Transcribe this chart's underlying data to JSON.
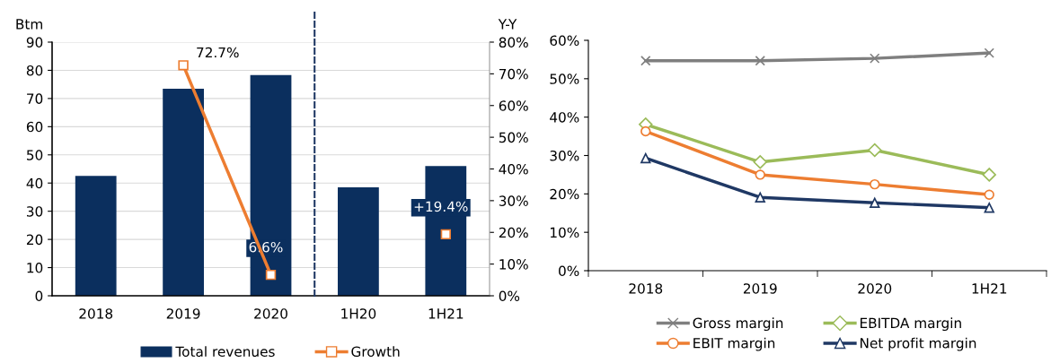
{
  "chart_data": [
    {
      "type": "bar",
      "ylabel": "Btm",
      "y2label": "Y-Y",
      "categories": [
        "2018",
        "2019",
        "2020",
        "1H20",
        "1H21"
      ],
      "series": [
        {
          "name": "Total revenues",
          "type": "bar",
          "color": "#0b2f5e",
          "values": [
            42.5,
            73.5,
            78.3,
            38.5,
            46
          ]
        },
        {
          "name": "Growth",
          "type": "line",
          "axis": "y2",
          "color": "#ed7d31",
          "marker": "square",
          "values": [
            null,
            72.7,
            6.6,
            null,
            19.4
          ],
          "value_labels": [
            null,
            "72.7%",
            "6.6%",
            null,
            "+19.4%"
          ]
        }
      ],
      "ylim": [
        0,
        90
      ],
      "yticks": [
        0,
        10,
        20,
        30,
        40,
        50,
        60,
        70,
        80,
        90
      ],
      "y2lim": [
        0,
        80
      ],
      "y2ticks": [
        {
          "value": 0,
          "label": "0%"
        },
        {
          "value": 10,
          "label": "10%"
        },
        {
          "value": 20,
          "label": "20%"
        },
        {
          "value": 30,
          "label": "30%"
        },
        {
          "value": 40,
          "label": "40%"
        },
        {
          "value": 50,
          "label": "50%"
        },
        {
          "value": 60,
          "label": "60%"
        },
        {
          "value": 70,
          "label": "70%"
        },
        {
          "value": 80,
          "label": "80%"
        }
      ],
      "grid": "y",
      "legend": "bottom"
    },
    {
      "type": "line",
      "categories": [
        "2018",
        "2019",
        "2020",
        "1H21"
      ],
      "series": [
        {
          "name": "Gross margin",
          "color": "#7f7f7f",
          "marker": "cross",
          "values": [
            54.7,
            54.7,
            55.3,
            56.7
          ]
        },
        {
          "name": "EBIT margin",
          "color": "#ed7d31",
          "marker": "circle",
          "values": [
            36.3,
            25.0,
            22.5,
            19.8
          ]
        },
        {
          "name": "EBITDA margin",
          "color": "#9bbb59",
          "marker": "diamond",
          "values": [
            38.1,
            28.3,
            31.4,
            25.0
          ]
        },
        {
          "name": "Net profit margin",
          "color": "#1f3864",
          "marker": "triangle",
          "values": [
            29.3,
            19.1,
            17.7,
            16.4
          ]
        }
      ],
      "ylim": [
        0,
        60
      ],
      "yticks": [
        {
          "value": 0,
          "label": "0%"
        },
        {
          "value": 10,
          "label": "10%"
        },
        {
          "value": 20,
          "label": "20%"
        },
        {
          "value": 30,
          "label": "30%"
        },
        {
          "value": 40,
          "label": "40%"
        },
        {
          "value": 50,
          "label": "50%"
        },
        {
          "value": 60,
          "label": "60%"
        }
      ],
      "grid": false,
      "legend": "bottom"
    }
  ]
}
